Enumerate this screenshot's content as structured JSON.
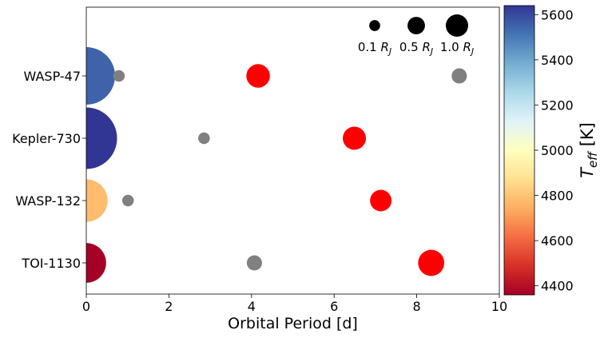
{
  "chart_data": {
    "type": "scatter",
    "title": "",
    "xlabel": "Orbital Period [d]",
    "ylabel": "",
    "xlim": [
      0,
      10
    ],
    "xticks": [
      0,
      2,
      4,
      6,
      8,
      10
    ],
    "grid": false,
    "systems": [
      "TOI-1130",
      "WASP-132",
      "Kepler-730",
      "WASP-47"
    ],
    "colorbar": {
      "label_base": "T",
      "label_sub": "eff",
      "label_unit": "[K]",
      "range": [
        4360,
        5640
      ],
      "ticks": [
        4400,
        4600,
        4800,
        5000,
        5200,
        5400,
        5600
      ],
      "colormap": "RdYlBu"
    },
    "size_legend": {
      "placement": "top-right",
      "unit_base": "R",
      "unit_sub": "J",
      "entries": [
        {
          "radius_rj": 0.1,
          "label": "0.1"
        },
        {
          "radius_rj": 0.5,
          "label": "0.5"
        },
        {
          "radius_rj": 1.0,
          "label": "1.0"
        }
      ]
    },
    "colors": {
      "hot_jupiter": "#ff0000",
      "companion": "#808080"
    },
    "stars": [
      {
        "system": "TOI-1130",
        "teff": 4360,
        "radius_rsun": 0.69
      },
      {
        "system": "WASP-132",
        "teff": 4780,
        "radius_rsun": 0.74
      },
      {
        "system": "Kepler-730",
        "teff": 5640,
        "radius_rsun": 1.07
      },
      {
        "system": "WASP-47",
        "teff": 5550,
        "radius_rsun": 1.0
      }
    ],
    "planets": [
      {
        "system": "WASP-47",
        "period": 0.79,
        "radius_rj": 0.13,
        "type": "companion"
      },
      {
        "system": "WASP-47",
        "period": 4.16,
        "radius_rj": 1.15,
        "type": "hot_jupiter"
      },
      {
        "system": "WASP-47",
        "period": 9.03,
        "radius_rj": 0.33,
        "type": "companion"
      },
      {
        "system": "Kepler-730",
        "period": 2.85,
        "radius_rj": 0.13,
        "type": "companion"
      },
      {
        "system": "Kepler-730",
        "period": 6.49,
        "radius_rj": 1.1,
        "type": "hot_jupiter"
      },
      {
        "system": "WASP-132",
        "period": 1.01,
        "radius_rj": 0.13,
        "type": "companion"
      },
      {
        "system": "WASP-132",
        "period": 7.13,
        "radius_rj": 0.9,
        "type": "hot_jupiter"
      },
      {
        "system": "TOI-1130",
        "period": 4.07,
        "radius_rj": 0.33,
        "type": "companion"
      },
      {
        "system": "TOI-1130",
        "period": 8.35,
        "radius_rj": 1.5,
        "type": "hot_jupiter"
      }
    ]
  }
}
